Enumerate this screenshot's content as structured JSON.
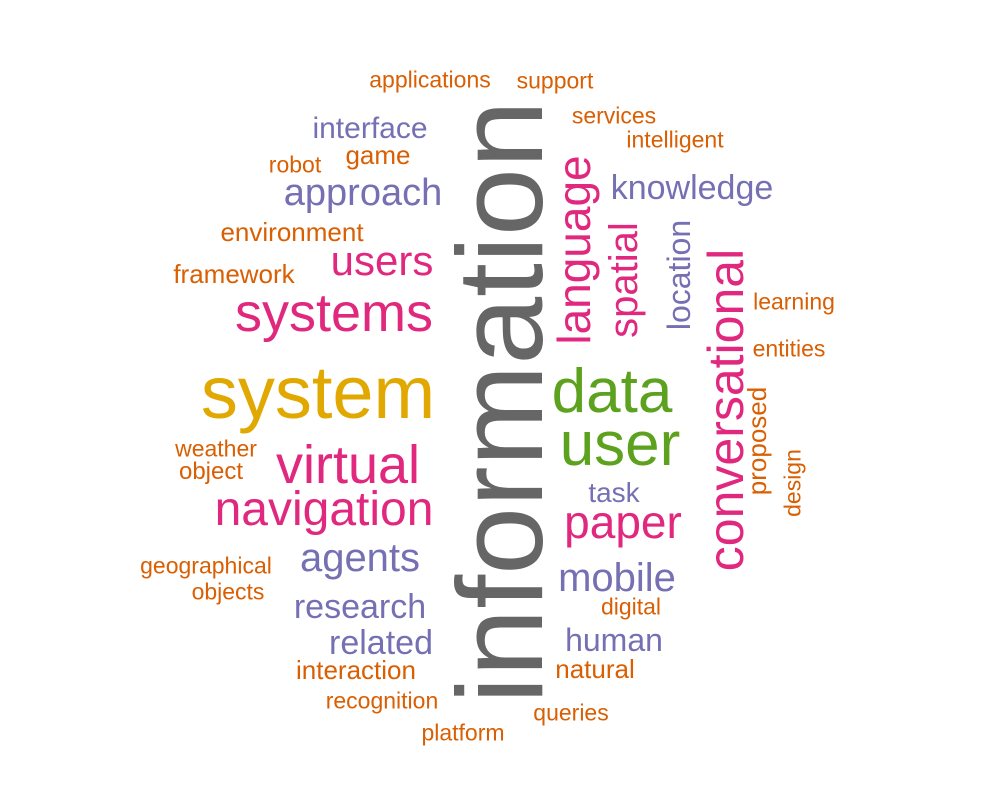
{
  "palette": {
    "grey": "#666666",
    "gold": "#e0a800",
    "green": "#5ca21e",
    "pink": "#e0287e",
    "purple": "#7570b3",
    "orange": "#d95f02"
  },
  "words": {
    "information": "information",
    "system": "system",
    "data": "data",
    "user": "user",
    "systems": "systems",
    "language": "language",
    "conversational": "conversational",
    "virtual": "virtual",
    "navigation": "navigation",
    "paper": "paper",
    "users": "users",
    "spatial": "spatial",
    "approach": "approach",
    "agents": "agents",
    "mobile": "mobile",
    "knowledge": "knowledge",
    "research": "research",
    "location": "location",
    "interface": "interface",
    "related": "related",
    "human": "human",
    "task": "task",
    "game": "game",
    "framework": "framework",
    "environment": "environment",
    "interaction": "interaction",
    "natural": "natural",
    "proposed": "proposed",
    "object": "object",
    "weather": "weather",
    "geographical": "geographical",
    "objects": "objects",
    "recognition": "recognition",
    "platform": "platform",
    "queries": "queries",
    "digital": "digital",
    "design": "design",
    "entities": "entities",
    "learning": "learning",
    "intelligent": "intelligent",
    "services": "services",
    "support": "support",
    "applications": "applications",
    "robot": "robot"
  }
}
